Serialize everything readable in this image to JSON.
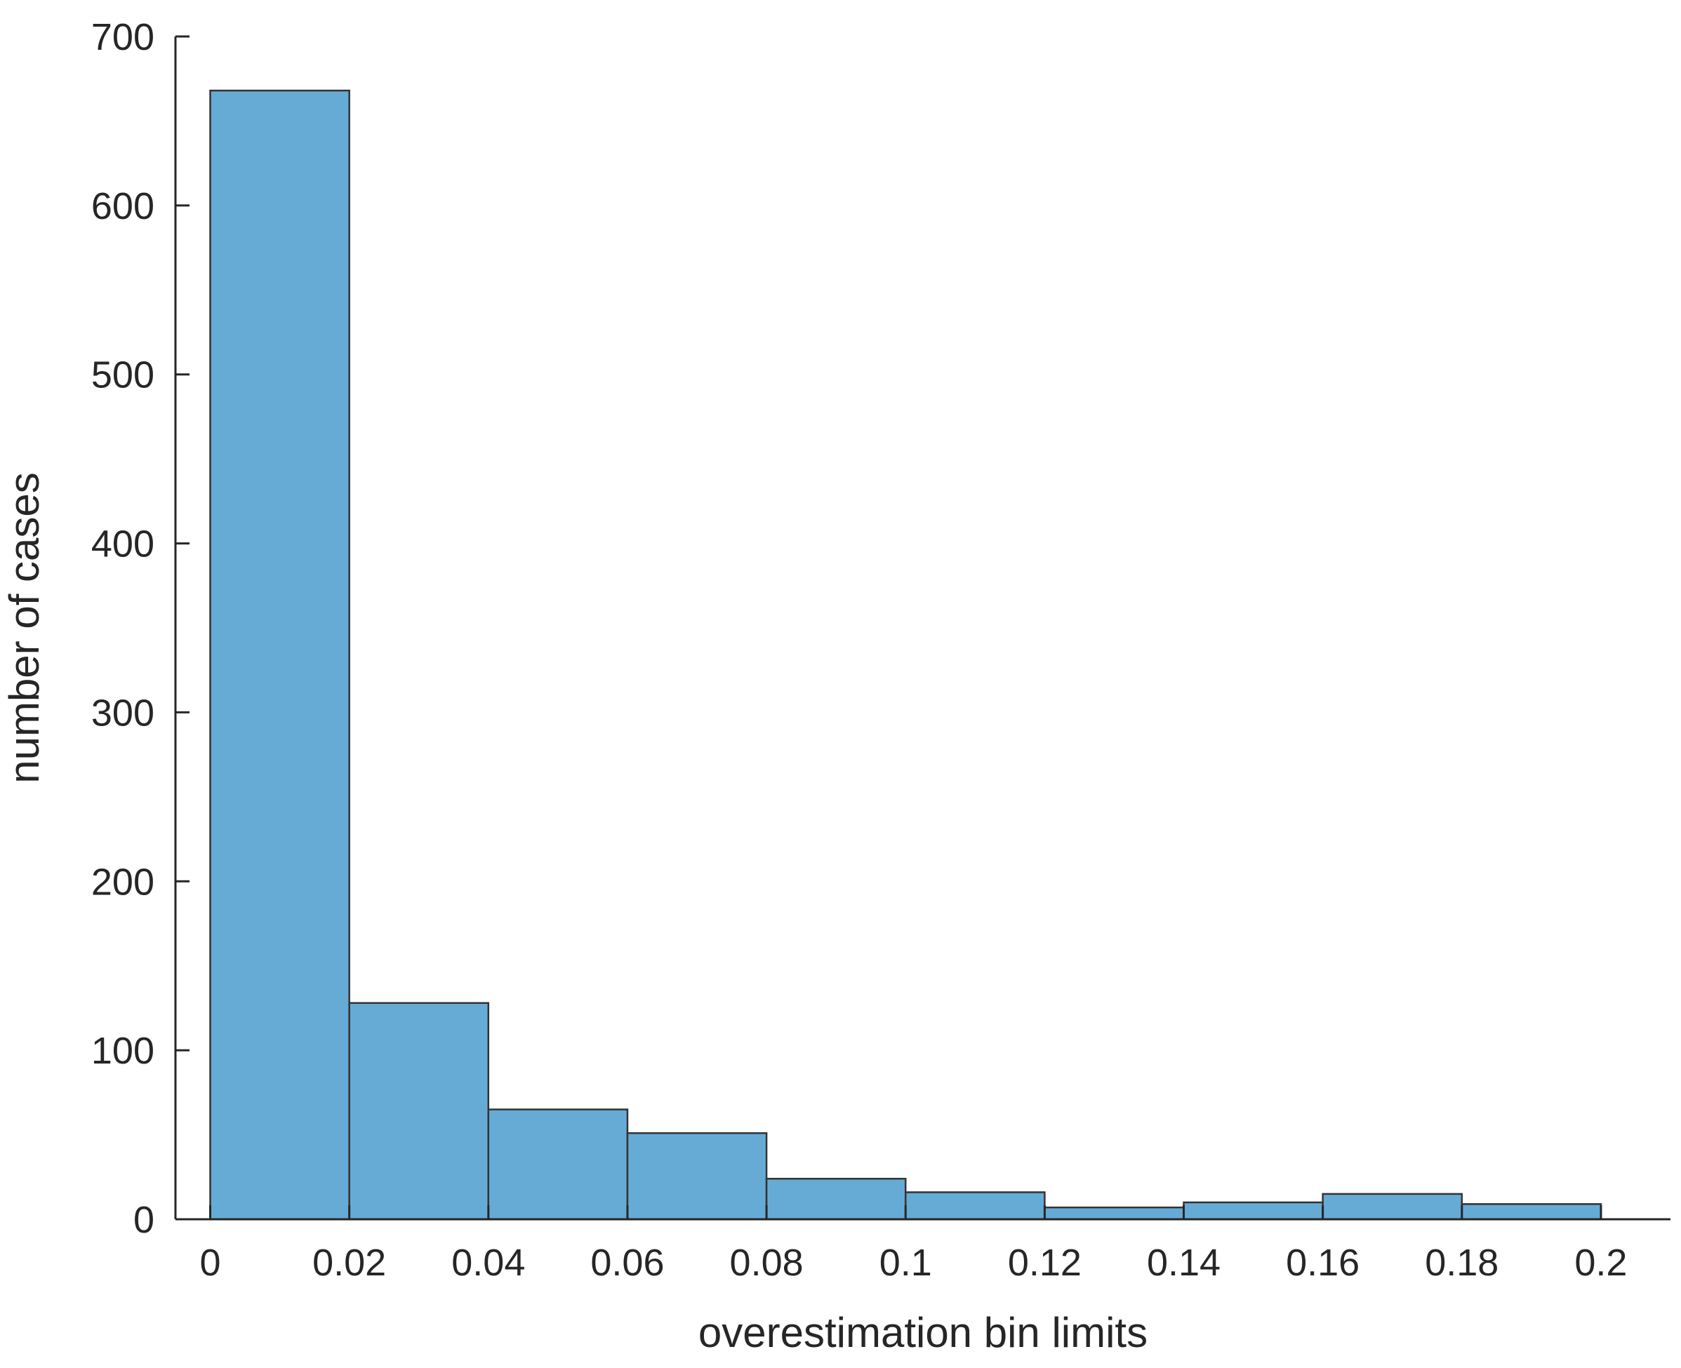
{
  "chart_data": {
    "type": "bar",
    "title": "",
    "xlabel": "overestimation bin limits",
    "ylabel": "number of cases",
    "bin_edges": [
      0,
      0.02,
      0.04,
      0.06,
      0.08,
      0.1,
      0.12,
      0.14,
      0.16,
      0.18,
      0.2
    ],
    "values": [
      668,
      128,
      65,
      51,
      24,
      16,
      7,
      10,
      15,
      9
    ],
    "xlim": [
      -0.005,
      0.21
    ],
    "ylim": [
      0,
      700
    ],
    "x_ticks": [
      0,
      0.02,
      0.04,
      0.06,
      0.08,
      0.1,
      0.12,
      0.14,
      0.16,
      0.18,
      0.2
    ],
    "x_tick_labels": [
      "0",
      "0.02",
      "0.04",
      "0.06",
      "0.08",
      "0.1",
      "0.12",
      "0.14",
      "0.16",
      "0.18",
      "0.2"
    ],
    "y_ticks": [
      0,
      100,
      200,
      300,
      400,
      500,
      600,
      700
    ],
    "y_tick_labels": [
      "0",
      "100",
      "200",
      "300",
      "400",
      "500",
      "600",
      "700"
    ],
    "bar_color": "#66abd6",
    "edge_color": "#333333",
    "grid": false,
    "legend": "none"
  }
}
